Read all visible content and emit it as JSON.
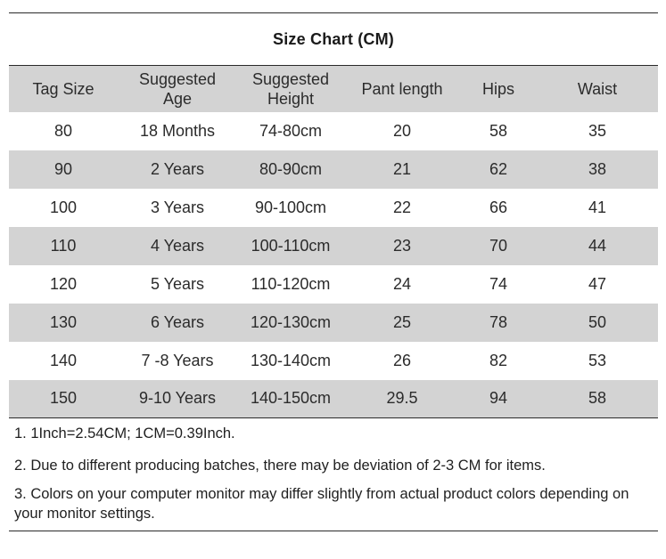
{
  "title": "Size Chart (CM)",
  "headers": [
    "Tag Size",
    "Suggested\nAge",
    "Suggested\nHeight",
    "Pant length",
    "Hips",
    "Waist"
  ],
  "rows": [
    [
      "80",
      "18 Months",
      "74-80cm",
      "20",
      "58",
      "35"
    ],
    [
      "90",
      "2 Years",
      "80-90cm",
      "21",
      "62",
      "38"
    ],
    [
      "100",
      "3 Years",
      "90-100cm",
      "22",
      "66",
      "41"
    ],
    [
      "110",
      "4 Years",
      "100-110cm",
      "23",
      "70",
      "44"
    ],
    [
      "120",
      "5 Years",
      "110-120cm",
      "24",
      "74",
      "47"
    ],
    [
      "130",
      "6 Years",
      "120-130cm",
      "25",
      "78",
      "50"
    ],
    [
      "140",
      "7 -8 Years",
      "130-140cm",
      "26",
      "82",
      "53"
    ],
    [
      "150",
      "9-10 Years",
      "140-150cm",
      "29.5",
      "94",
      "58"
    ]
  ],
  "notes": [
    "1. 1Inch=2.54CM; 1CM=0.39Inch.",
    "2. Due to different producing batches, there may be deviation of 2-3 CM for items.",
    "3. Colors on your computer monitor may differ slightly from actual product colors depending on your monitor settings."
  ],
  "colors": {
    "shade": "#d3d3d3",
    "rule": "#2a2a2a",
    "text": "#2b2b2b"
  }
}
